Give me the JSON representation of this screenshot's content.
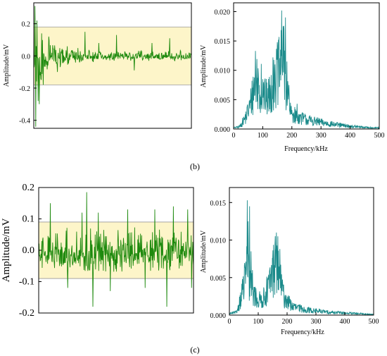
{
  "figure": {
    "caption_b": "(b)",
    "caption_c": "(c)"
  },
  "chart_data": [
    {
      "id": "b-time",
      "type": "line",
      "title": "",
      "xlabel": "",
      "ylabel": "Amplitude/mV",
      "xlim": [
        0,
        1000
      ],
      "ylim": [
        -0.45,
        0.33
      ],
      "x_ticks_shown": false,
      "y_ticks": [
        -0.4,
        -0.2,
        0.0,
        0.2
      ],
      "y_tick_labels": [
        "-0.4",
        "-0.2",
        "0.0",
        "0.2"
      ],
      "band": {
        "ymin": -0.18,
        "ymax": 0.18,
        "color": "#fdf5c9"
      },
      "band_edge_color": "#999999",
      "line_color": "#1e8a0e",
      "series": [
        {
          "samples": 400,
          "profile": "decaying burst",
          "spikes": [
            [
              3,
              0.31
            ],
            [
              5,
              -0.44
            ],
            [
              8,
              0.22
            ],
            [
              11,
              -0.28
            ],
            [
              14,
              -0.3
            ],
            [
              20,
              0.14
            ],
            [
              24,
              -0.18
            ],
            [
              38,
              0.12
            ],
            [
              60,
              -0.1
            ],
            [
              85,
              0.06
            ],
            [
              130,
              0.15
            ],
            [
              165,
              0.08
            ],
            [
              210,
              0.13
            ],
            [
              255,
              -0.09
            ],
            [
              300,
              0.08
            ],
            [
              345,
              0.11
            ]
          ]
        }
      ]
    },
    {
      "id": "b-freq",
      "type": "line",
      "title": "",
      "xlabel": "Frequency/kHz",
      "ylabel": "Amplitude/mV",
      "xlim": [
        0,
        500
      ],
      "ylim": [
        0,
        0.0215
      ],
      "x_ticks": [
        0,
        100,
        200,
        300,
        400,
        500
      ],
      "x_tick_labels": [
        "0",
        "100",
        "200",
        "300",
        "400",
        "500"
      ],
      "y_ticks": [
        0,
        0.005,
        0.01,
        0.015,
        0.02
      ],
      "y_tick_labels": [
        "0.000",
        "0.005",
        "0.010",
        "0.015",
        "0.020"
      ],
      "line_color": "#1a8a8a",
      "series": [
        {
          "samples": 500,
          "profile": "double peak",
          "envelope": [
            [
              0,
              0.0002
            ],
            [
              20,
              0.0004
            ],
            [
              40,
              0.002
            ],
            [
              55,
              0.004
            ],
            [
              70,
              0.0075
            ],
            [
              80,
              0.009
            ],
            [
              90,
              0.007
            ],
            [
              100,
              0.0065
            ],
            [
              115,
              0.0055
            ],
            [
              130,
              0.007
            ],
            [
              145,
              0.009
            ],
            [
              160,
              0.011
            ],
            [
              170,
              0.013
            ],
            [
              180,
              0.008
            ],
            [
              195,
              0.003
            ],
            [
              220,
              0.0022
            ],
            [
              260,
              0.0016
            ],
            [
              300,
              0.0012
            ],
            [
              350,
              0.0008
            ],
            [
              400,
              0.0005
            ],
            [
              450,
              0.0003
            ],
            [
              500,
              0.0002
            ]
          ],
          "spikes": [
            [
              75,
              0.0133
            ],
            [
              85,
              0.0095
            ],
            [
              95,
              0.0111
            ],
            [
              100,
              0.0085
            ],
            [
              135,
              0.0122
            ],
            [
              142,
              0.011
            ],
            [
              150,
              0.0148
            ],
            [
              165,
              0.0202
            ],
            [
              170,
              0.0175
            ],
            [
              178,
              0.019
            ],
            [
              183,
              0.0115
            ],
            [
              190,
              0.0075
            ],
            [
              218,
              0.0043
            ]
          ]
        }
      ]
    },
    {
      "id": "c-time",
      "type": "line",
      "title": "",
      "xlabel": "",
      "ylabel": "Amplitude/mV",
      "xlim": [
        0,
        1000
      ],
      "ylim": [
        -0.2,
        0.2
      ],
      "x_ticks_shown": false,
      "y_ticks": [
        -0.2,
        -0.1,
        0.0,
        0.1,
        0.2
      ],
      "y_tick_labels": [
        "-0.2",
        "-0.1",
        "0.0",
        "0.1",
        "0.2"
      ],
      "band": {
        "ymin": -0.09,
        "ymax": 0.09,
        "color": "#fdf5c9"
      },
      "band_edge_color": "#999999",
      "line_color": "#1e8a0e",
      "series": [
        {
          "samples": 400,
          "profile": "stationary noise",
          "spikes": [
            [
              30,
              0.15
            ],
            [
              75,
              -0.12
            ],
            [
              112,
              0.12
            ],
            [
              124,
              0.185
            ],
            [
              140,
              -0.18
            ],
            [
              154,
              0.12
            ],
            [
              185,
              -0.13
            ],
            [
              230,
              0.13
            ],
            [
              275,
              -0.12
            ],
            [
              300,
              0.13
            ],
            [
              331,
              -0.18
            ],
            [
              348,
              0.14
            ],
            [
              385,
              0.13
            ],
            [
              395,
              -0.12
            ]
          ]
        }
      ]
    },
    {
      "id": "c-freq",
      "type": "line",
      "title": "",
      "xlabel": "Frequency/kHz",
      "ylabel": "Amplitude/mV",
      "xlim": [
        0,
        500
      ],
      "ylim": [
        0,
        0.017
      ],
      "x_ticks": [
        0,
        100,
        200,
        300,
        400,
        500
      ],
      "x_tick_labels": [
        "0",
        "100",
        "200",
        "300",
        "400",
        "500"
      ],
      "y_ticks": [
        0,
        0.005,
        0.01,
        0.015
      ],
      "y_tick_labels": [
        "0.000",
        "0.005",
        "0.010",
        "0.015"
      ],
      "line_color": "#1a8a8a",
      "series": [
        {
          "samples": 500,
          "profile": "double peak",
          "envelope": [
            [
              0,
              0.0002
            ],
            [
              25,
              0.0004
            ],
            [
              40,
              0.0025
            ],
            [
              50,
              0.004
            ],
            [
              60,
              0.0065
            ],
            [
              70,
              0.005
            ],
            [
              85,
              0.003
            ],
            [
              100,
              0.002
            ],
            [
              120,
              0.0025
            ],
            [
              140,
              0.0045
            ],
            [
              155,
              0.007
            ],
            [
              165,
              0.0075
            ],
            [
              175,
              0.005
            ],
            [
              190,
              0.0025
            ],
            [
              220,
              0.0012
            ],
            [
              260,
              0.0008
            ],
            [
              300,
              0.0006
            ],
            [
              350,
              0.0004
            ],
            [
              400,
              0.0003
            ],
            [
              450,
              0.0002
            ],
            [
              500,
              0.0001
            ]
          ],
          "spikes": [
            [
              45,
              0.0048
            ],
            [
              55,
              0.0062
            ],
            [
              62,
              0.0153
            ],
            [
              65,
              0.0125
            ],
            [
              70,
              0.0145
            ],
            [
              75,
              0.0085
            ],
            [
              80,
              0.006
            ],
            [
              150,
              0.0075
            ],
            [
              158,
              0.0095
            ],
            [
              163,
              0.011
            ],
            [
              168,
              0.0105
            ],
            [
              175,
              0.0088
            ],
            [
              185,
              0.004
            ],
            [
              205,
              0.0018
            ]
          ]
        }
      ]
    }
  ]
}
